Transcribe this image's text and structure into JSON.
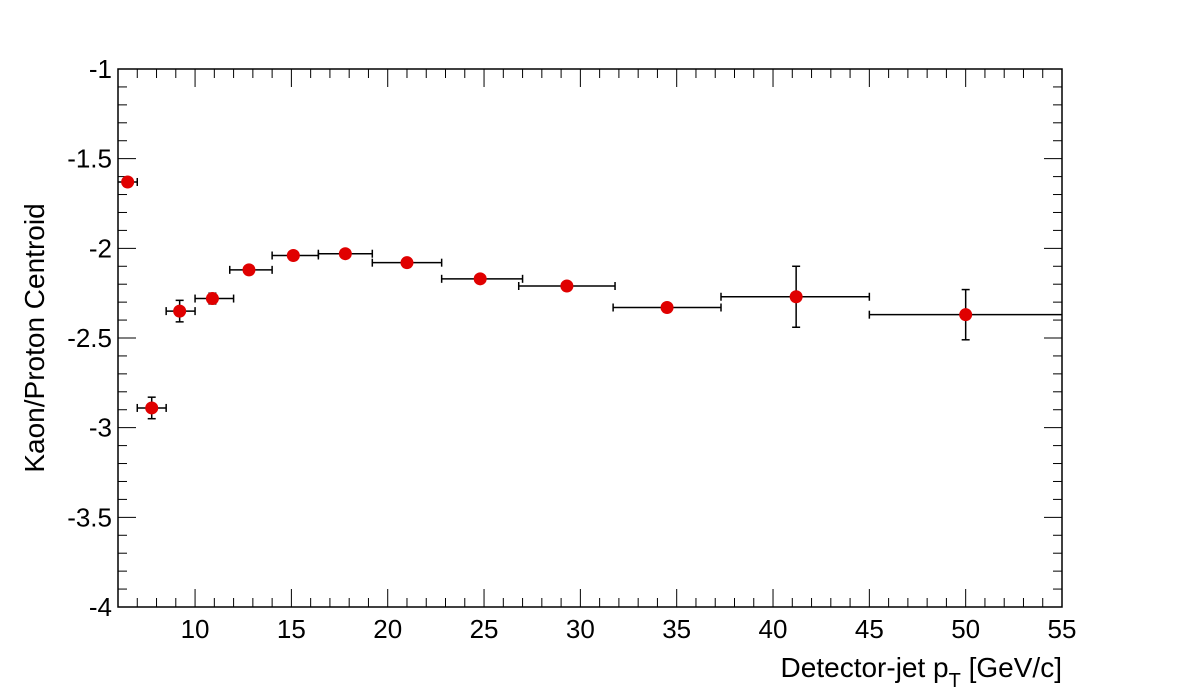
{
  "chart_data": {
    "type": "scatter",
    "title": "",
    "xlabel": "Detector-jet p",
    "xlabel_sub": "T",
    "xlabel_tail": " [GeV/c]",
    "ylabel": "Kaon/Proton Centroid",
    "xlim": [
      6,
      55
    ],
    "ylim": [
      -4,
      -1
    ],
    "xticks": [
      10,
      15,
      20,
      25,
      30,
      35,
      40,
      45,
      50,
      55
    ],
    "yticks": [
      -4,
      -3.5,
      -3,
      -2.5,
      -2,
      -1.5,
      -1
    ],
    "xtick_labels": [
      "10",
      "15",
      "20",
      "25",
      "30",
      "35",
      "40",
      "45",
      "50",
      "55"
    ],
    "ytick_labels": [
      "-4",
      "-3.5",
      "-3",
      "-2.5",
      "-2",
      "-1.5",
      "-1"
    ],
    "marker_color": "#e00000",
    "grid": false,
    "points": [
      {
        "x": 6.5,
        "xerr": [
          0.5,
          0.5
        ],
        "y": -1.63,
        "yerr": 0.0
      },
      {
        "x": 7.75,
        "xerr": [
          0.75,
          0.75
        ],
        "y": -2.89,
        "yerr": 0.06
      },
      {
        "x": 9.2,
        "xerr": [
          0.7,
          0.8
        ],
        "y": -2.35,
        "yerr": 0.06
      },
      {
        "x": 10.9,
        "xerr": [
          0.9,
          1.1
        ],
        "y": -2.28,
        "yerr": 0.03
      },
      {
        "x": 12.8,
        "xerr": [
          1.0,
          1.2
        ],
        "y": -2.12,
        "yerr": 0.0
      },
      {
        "x": 15.1,
        "xerr": [
          1.1,
          1.3
        ],
        "y": -2.04,
        "yerr": 0.0
      },
      {
        "x": 17.8,
        "xerr": [
          1.4,
          1.4
        ],
        "y": -2.03,
        "yerr": 0.0
      },
      {
        "x": 21.0,
        "xerr": [
          1.8,
          1.8
        ],
        "y": -2.08,
        "yerr": 0.0
      },
      {
        "x": 24.8,
        "xerr": [
          2.0,
          2.2
        ],
        "y": -2.17,
        "yerr": 0.0
      },
      {
        "x": 29.3,
        "xerr": [
          2.5,
          2.5
        ],
        "y": -2.21,
        "yerr": 0.0
      },
      {
        "x": 34.5,
        "xerr": [
          2.8,
          2.8
        ],
        "y": -2.33,
        "yerr": 0.0
      },
      {
        "x": 41.2,
        "xerr": [
          3.9,
          3.8
        ],
        "y": -2.27,
        "yerr": 0.17
      },
      {
        "x": 50.0,
        "xerr": [
          5.0,
          5.0
        ],
        "y": -2.37,
        "yerr": 0.14
      }
    ]
  }
}
